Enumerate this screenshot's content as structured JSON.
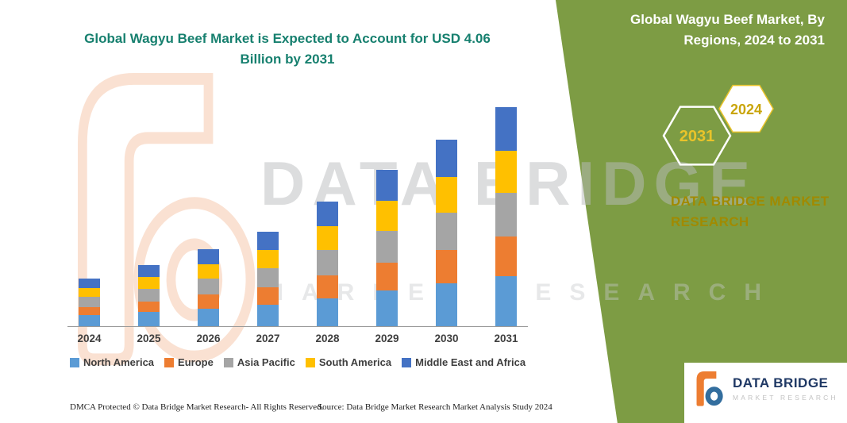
{
  "header": {
    "title": "Global Wagyu Beef Market is Expected to Account for USD 4.06 Billion by 2031"
  },
  "panel": {
    "heading": "Global Wagyu Beef Market, By Regions, 2024 to 2031",
    "badge_back": "2031",
    "badge_front": "2024",
    "brand_line1": "DATA BRIDGE MARKET",
    "brand_line2": "RESEARCH",
    "green_color": "#7d9c44",
    "badge_text_color": "#e9c32a"
  },
  "watermark": {
    "line1": "DATA BRIDGE",
    "line2": "MARKET RESEARCH"
  },
  "logo": {
    "title": "DATA BRIDGE",
    "subtitle": "MARKET RESEARCH"
  },
  "footer": {
    "dmca": "DMCA Protected © Data Bridge Market Research-  All Rights Reserved.",
    "source": "Source: Data Bridge Market Research  Market Analysis Study 2024"
  },
  "chart_data": {
    "type": "bar",
    "stacked": true,
    "title": "Global Wagyu Beef Market, By Regions, 2024 to 2031",
    "unit": "USD Billion",
    "annotation": "USD 4.06 Billion by 2031",
    "categories": [
      "2024",
      "2025",
      "2026",
      "2027",
      "2028",
      "2029",
      "2030",
      "2031"
    ],
    "series": [
      {
        "name": "North America",
        "color": "#5b9bd5",
        "values": [
          0.2,
          0.26,
          0.33,
          0.4,
          0.52,
          0.66,
          0.79,
          0.93
        ]
      },
      {
        "name": "Europe",
        "color": "#ed7d31",
        "values": [
          0.16,
          0.2,
          0.26,
          0.32,
          0.42,
          0.52,
          0.62,
          0.73
        ]
      },
      {
        "name": "Asia Pacific",
        "color": "#a5a5a5",
        "values": [
          0.18,
          0.23,
          0.29,
          0.36,
          0.47,
          0.59,
          0.7,
          0.82
        ]
      },
      {
        "name": "South America",
        "color": "#ffc000",
        "values": [
          0.17,
          0.22,
          0.27,
          0.33,
          0.44,
          0.55,
          0.66,
          0.77
        ]
      },
      {
        "name": "Middle East and Africa",
        "color": "#4472c4",
        "values": [
          0.17,
          0.22,
          0.28,
          0.34,
          0.46,
          0.58,
          0.69,
          0.81
        ]
      }
    ],
    "totals": [
      0.88,
      1.13,
      1.43,
      1.75,
      2.31,
      2.9,
      3.46,
      4.06
    ],
    "ylim": [
      0,
      4.2
    ],
    "grid": false,
    "legend_position": "bottom"
  }
}
